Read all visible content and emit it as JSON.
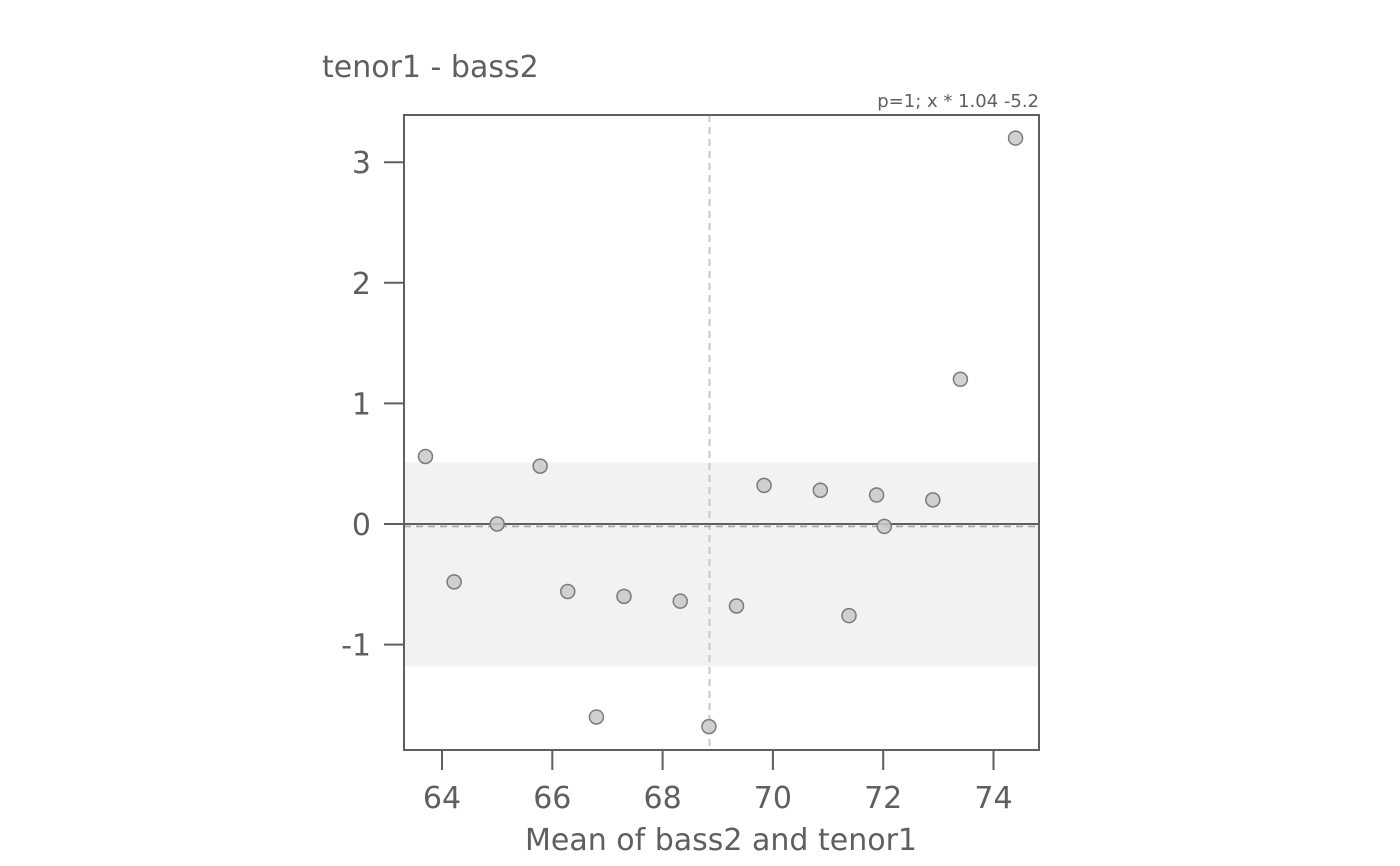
{
  "chart_data": {
    "type": "scatter",
    "title": "tenor1 - bass2",
    "subtitle": "p=1; x * 1.04 -5.2",
    "xlabel": "Mean of bass2 and tenor1",
    "ylabel": "",
    "xlim": [
      63.3,
      74.8
    ],
    "ylim": [
      -1.88,
      3.4
    ],
    "xticks": [
      64,
      66,
      68,
      70,
      72,
      74
    ],
    "yticks": [
      -1,
      0,
      1,
      2,
      3
    ],
    "ytick_labels": [
      "-1",
      "0",
      "1",
      "2",
      "3"
    ],
    "grid": false,
    "mean_diff": -0.02,
    "limits_of_agreement": [
      -1.18,
      0.51
    ],
    "mean_x": 68.85,
    "reference_y": 0,
    "colors": {
      "points_fill": "#c9c9c9",
      "points_stroke": "#7a7a7a",
      "band": "#f2f2f2",
      "axis": "#5f5f5f",
      "dashed": "#c8c8c8"
    },
    "points": [
      {
        "x": 63.7,
        "y": 0.56
      },
      {
        "x": 64.22,
        "y": -0.48
      },
      {
        "x": 65.0,
        "y": 0.0
      },
      {
        "x": 65.78,
        "y": 0.48
      },
      {
        "x": 66.28,
        "y": -0.56
      },
      {
        "x": 66.8,
        "y": -1.6
      },
      {
        "x": 67.3,
        "y": -0.6
      },
      {
        "x": 68.32,
        "y": -0.64
      },
      {
        "x": 68.84,
        "y": -1.68
      },
      {
        "x": 69.34,
        "y": -0.68
      },
      {
        "x": 69.84,
        "y": 0.32
      },
      {
        "x": 70.86,
        "y": 0.28
      },
      {
        "x": 71.38,
        "y": -0.76
      },
      {
        "x": 71.88,
        "y": 0.24
      },
      {
        "x": 72.02,
        "y": -0.02
      },
      {
        "x": 72.9,
        "y": 0.2
      },
      {
        "x": 73.4,
        "y": 1.2
      },
      {
        "x": 74.4,
        "y": 3.2
      }
    ]
  }
}
